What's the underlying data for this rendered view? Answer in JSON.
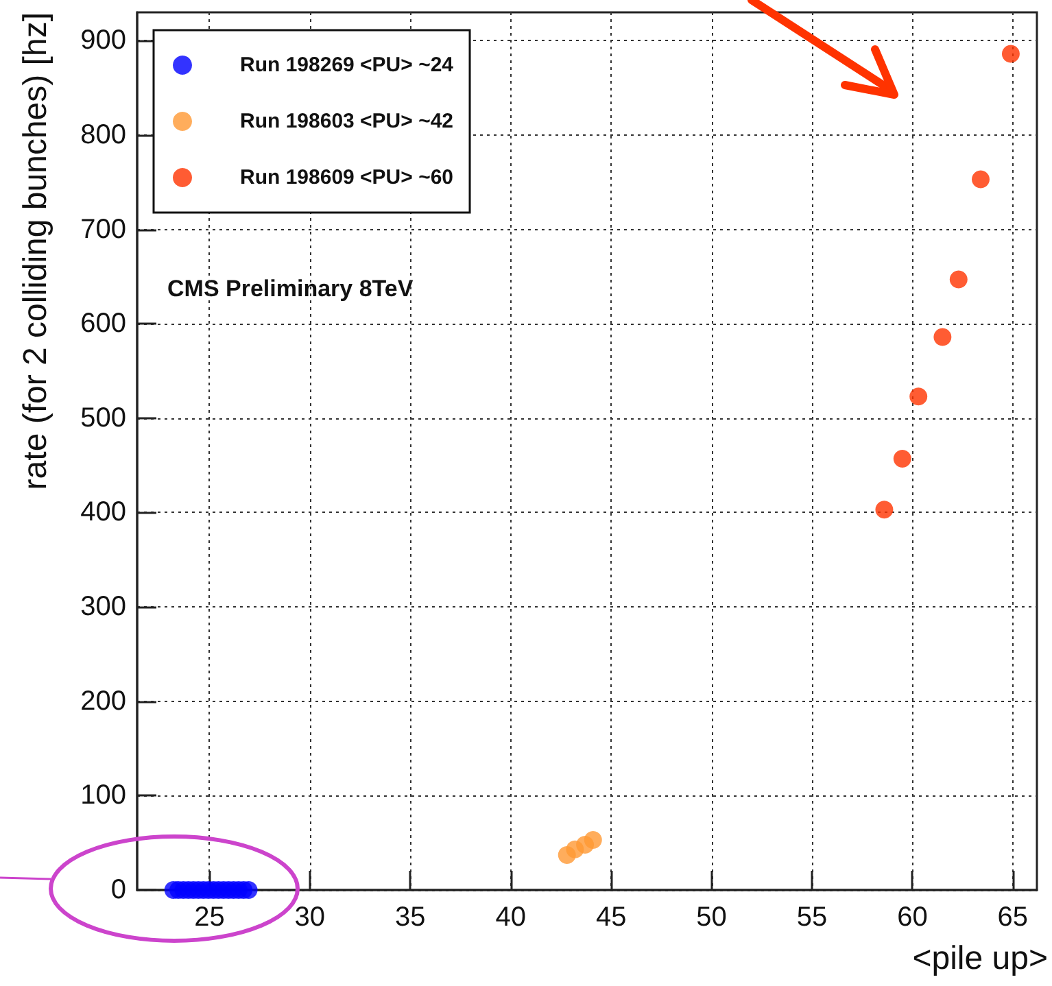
{
  "chart_data": {
    "type": "scatter",
    "xlabel": "<pile up>",
    "ylabel": "rate (for 2 colliding bunches) [hz]",
    "annotations": [
      "CMS Preliminary 8TeV"
    ],
    "xlim": [
      21.4,
      66.2
    ],
    "xticks": [
      25,
      30,
      35,
      40,
      45,
      50,
      55,
      60,
      65
    ],
    "ylim": [
      0,
      930
    ],
    "yticks": [
      0,
      100,
      200,
      300,
      400,
      500,
      600,
      700,
      800,
      900
    ],
    "grid": true,
    "legend": "top left",
    "marker": "circle",
    "series": [
      {
        "name": "Run 198269 <PU> ~24",
        "color": "#0000ff",
        "x": [
          23.2,
          23.45,
          23.7,
          23.95,
          24.2,
          24.45,
          24.7,
          24.95,
          25.2,
          25.45,
          25.7,
          25.95,
          26.2,
          26.45,
          26.7,
          26.95
        ],
        "values": [
          0,
          0,
          0,
          0,
          0,
          0,
          0,
          0,
          0,
          0,
          0,
          0,
          0,
          0,
          0,
          0
        ]
      },
      {
        "name": "Run 198603 <PU> ~42",
        "color": "#ff9933",
        "x": [
          42.8,
          43.2,
          43.7,
          44.1
        ],
        "values": [
          37,
          43,
          48,
          53
        ]
      },
      {
        "name": "Run 198609 <PU> ~60",
        "color": "#ff3300",
        "x": [
          58.6,
          59.5,
          60.3,
          61.5,
          62.3,
          63.4,
          64.9
        ],
        "values": [
          403,
          457,
          523,
          586,
          647,
          753,
          886
        ]
      }
    ]
  }
}
